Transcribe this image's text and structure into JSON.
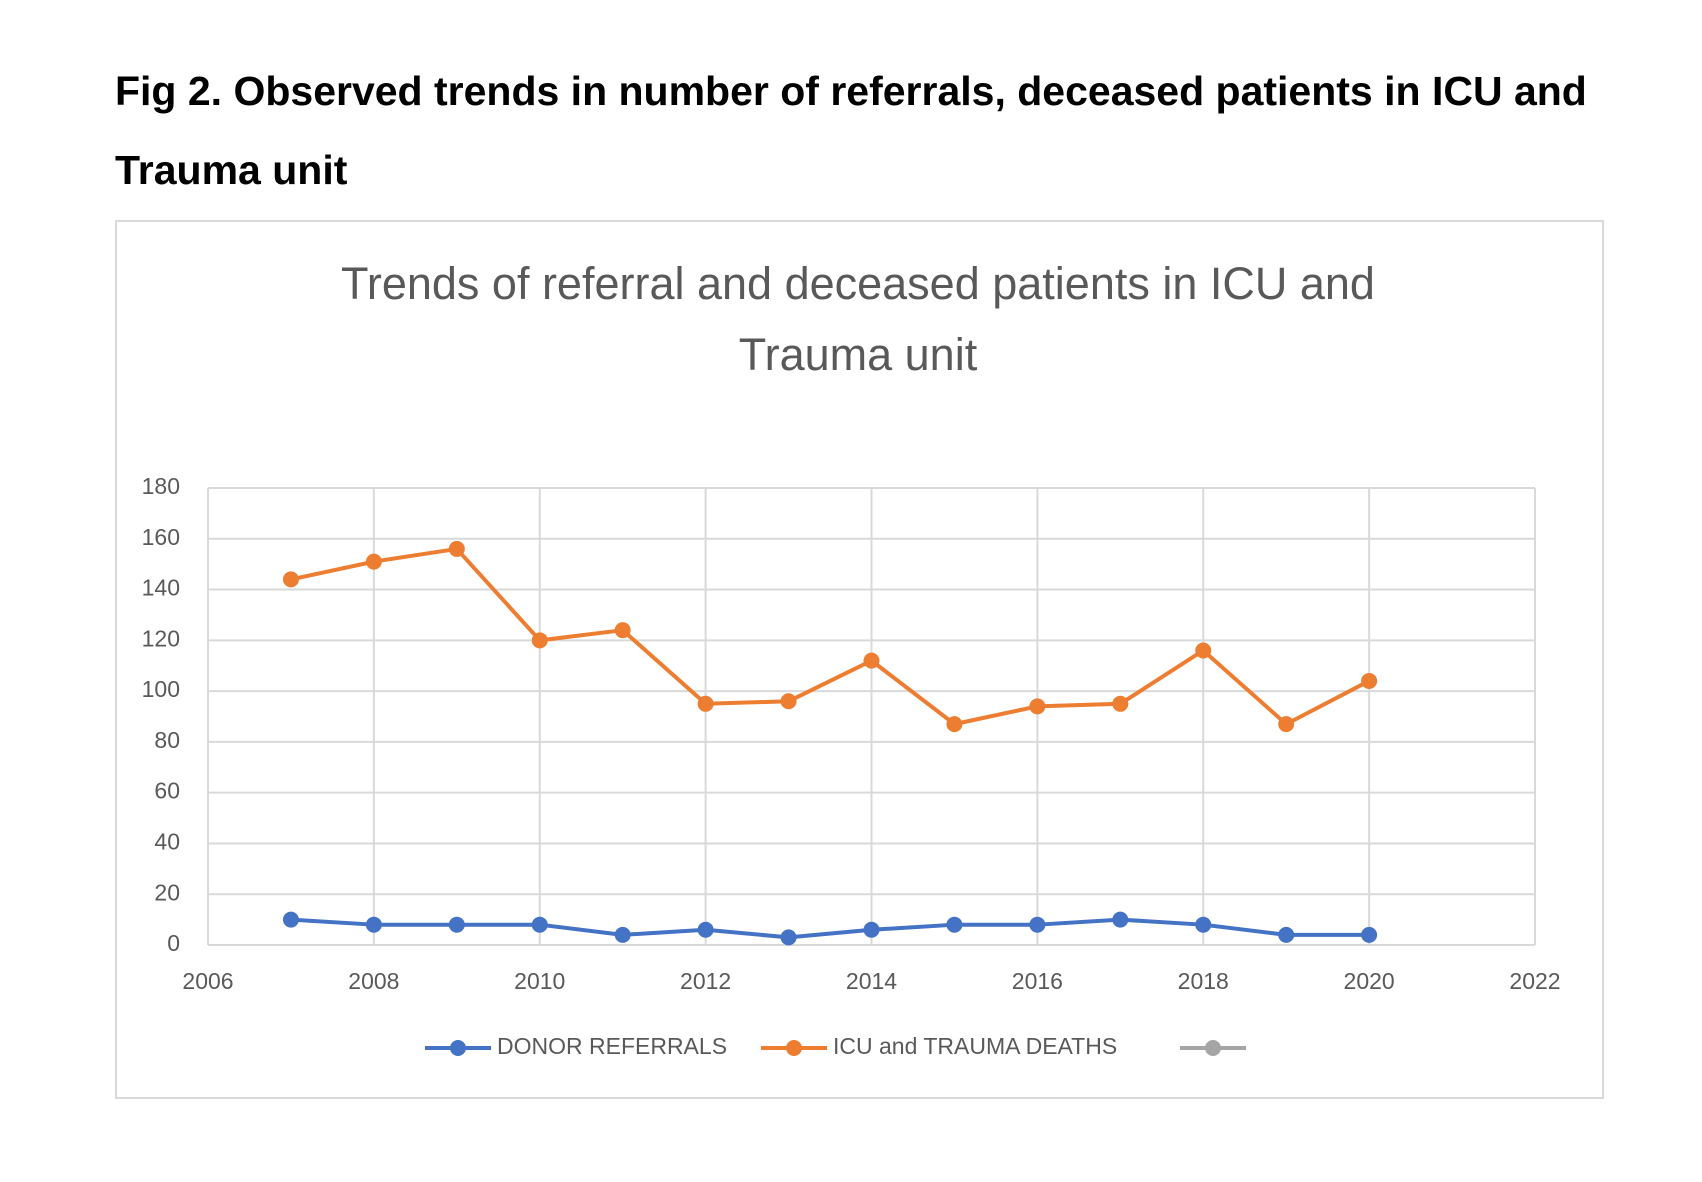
{
  "caption": "Fig 2. Observed trends in number of referrals, deceased patients in ICU and Trauma unit",
  "chart_data": {
    "type": "line",
    "title": "Trends of referral and deceased patients in ICU and Trauma unit",
    "x": [
      2007,
      2008,
      2009,
      2010,
      2011,
      2012,
      2013,
      2014,
      2015,
      2016,
      2017,
      2018,
      2019,
      2020
    ],
    "series": [
      {
        "name": "DONOR REFERRALS",
        "color": "#4472c4",
        "values": [
          10,
          8,
          8,
          8,
          4,
          6,
          3,
          6,
          8,
          8,
          10,
          8,
          4,
          4
        ]
      },
      {
        "name": "ICU and TRAUMA DEATHS",
        "color": "#ed7d31",
        "values": [
          144,
          151,
          156,
          120,
          124,
          95,
          96,
          112,
          87,
          94,
          95,
          116,
          87,
          104
        ]
      }
    ],
    "xlim": [
      2006,
      2022
    ],
    "xticks": [
      2006,
      2008,
      2010,
      2012,
      2014,
      2016,
      2018,
      2020,
      2022
    ],
    "ylim": [
      0,
      180
    ],
    "yticks": [
      0,
      20,
      40,
      60,
      80,
      100,
      120,
      140,
      160,
      180
    ],
    "grid": true,
    "legend": "bottom"
  }
}
